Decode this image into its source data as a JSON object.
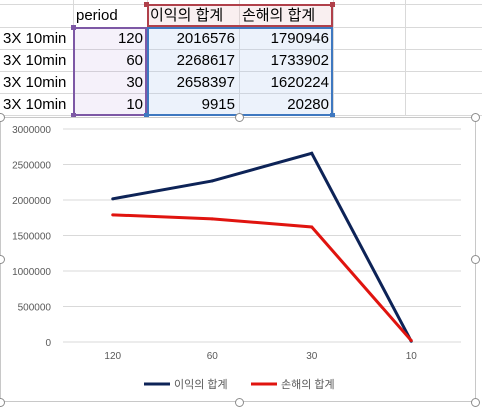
{
  "table": {
    "headers": [
      "period",
      "이익의 합계",
      "손해의 합계"
    ],
    "rows": [
      {
        "label": "3X 10min",
        "period": "120",
        "profit": "2016576",
        "loss": "1790946"
      },
      {
        "label": "3X 10min",
        "period": "60",
        "profit": "2268617",
        "loss": "1733902"
      },
      {
        "label": "3X 10min",
        "period": "30",
        "profit": "2658397",
        "loss": "1620224"
      },
      {
        "label": "3X 10min",
        "period": "10",
        "profit": "9915",
        "loss": "20280"
      }
    ]
  },
  "colors": {
    "profit": "#0d2357",
    "loss": "#e0140f",
    "grid": "#d9d9d9"
  },
  "chart_data": {
    "type": "line",
    "categories": [
      "120",
      "60",
      "30",
      "10"
    ],
    "series": [
      {
        "name": "이익의 합계",
        "values": [
          2016576,
          2268617,
          2658397,
          9915
        ],
        "color": "#0d2357"
      },
      {
        "name": "손해의 합계",
        "values": [
          1790946,
          1733902,
          1620224,
          20280
        ],
        "color": "#e0140f"
      }
    ],
    "yticks": [
      "0",
      "500000",
      "1000000",
      "1500000",
      "2000000",
      "2500000",
      "3000000"
    ],
    "ylim": [
      0,
      3000000
    ],
    "grid": true,
    "legend": "bottom"
  }
}
